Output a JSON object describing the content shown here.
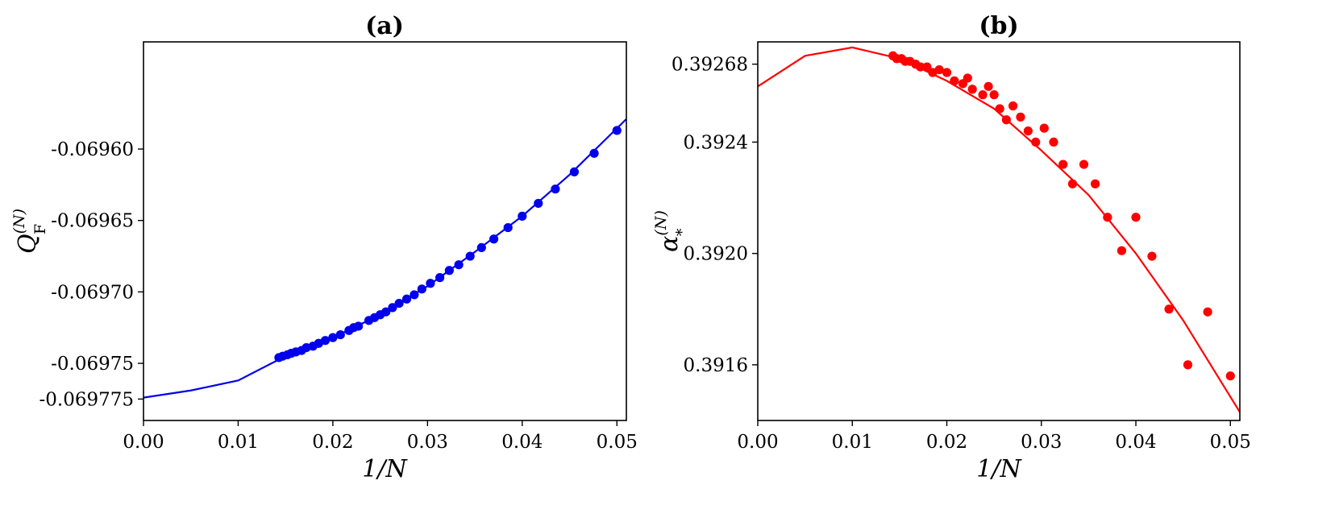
{
  "chart_data": [
    {
      "type": "scatter",
      "panel": "(a)",
      "title": "(a)",
      "xlabel": "1/N",
      "ylabel": "Q_F^(N)",
      "ylabel_main": "Q",
      "ylabel_sub": "F",
      "ylabel_sup": "(N)",
      "xlim": [
        0,
        0.051
      ],
      "ylim": [
        -0.06979,
        -0.069525
      ],
      "xticks": [
        0,
        0.01,
        0.02,
        0.03,
        0.04,
        0.05
      ],
      "xtick_labels": [
        "0.00",
        "0.01",
        "0.02",
        "0.03",
        "0.04",
        "0.05"
      ],
      "yticks": [
        -0.069775,
        -0.06975,
        -0.0697,
        -0.06965,
        -0.0696
      ],
      "ytick_labels": [
        "-0.069775",
        "-0.06975",
        "-0.06970",
        "-0.06965",
        "-0.06960"
      ],
      "grid": false,
      "color": "#0000ee",
      "series": [
        {
          "kind": "points",
          "x": [
            0.0143,
            0.0147,
            0.0152,
            0.0156,
            0.0161,
            0.0167,
            0.0172,
            0.0179,
            0.0185,
            0.0192,
            0.02,
            0.0208,
            0.0217,
            0.0222,
            0.0227,
            0.0238,
            0.0244,
            0.025,
            0.0256,
            0.0263,
            0.027,
            0.0278,
            0.0286,
            0.0294,
            0.0303,
            0.0313,
            0.0323,
            0.0333,
            0.0345,
            0.0357,
            0.037,
            0.0385,
            0.04,
            0.0417,
            0.0435,
            0.0455,
            0.0476,
            0.05
          ],
          "y": [
            -0.069746,
            -0.069745,
            -0.069744,
            -0.069743,
            -0.069742,
            -0.069741,
            -0.069739,
            -0.069738,
            -0.069736,
            -0.069734,
            -0.069732,
            -0.06973,
            -0.069727,
            -0.069725,
            -0.069724,
            -0.06972,
            -0.069718,
            -0.069716,
            -0.069714,
            -0.069711,
            -0.069708,
            -0.069705,
            -0.069702,
            -0.069698,
            -0.069694,
            -0.06969,
            -0.069685,
            -0.069681,
            -0.069675,
            -0.069669,
            -0.069663,
            -0.069655,
            -0.069647,
            -0.069638,
            -0.069628,
            -0.069616,
            -0.069603,
            -0.069587
          ]
        },
        {
          "kind": "fit",
          "x": [
            0,
            0.005,
            0.01,
            0.015,
            0.02,
            0.025,
            0.03,
            0.035,
            0.04,
            0.045,
            0.051
          ],
          "y": [
            -0.069774,
            -0.069769,
            -0.069762,
            -0.069745,
            -0.069732,
            -0.069716,
            -0.069696,
            -0.069672,
            -0.069647,
            -0.069618,
            -0.069579
          ]
        }
      ]
    },
    {
      "type": "scatter",
      "panel": "(b)",
      "title": "(b)",
      "xlabel": "1/N",
      "ylabel": "alpha_*^(N)",
      "ylabel_main": "α",
      "ylabel_sub": "*",
      "ylabel_sup": "(N)",
      "xlim": [
        0,
        0.051
      ],
      "ylim": [
        0.3914,
        0.39276
      ],
      "xticks": [
        0,
        0.01,
        0.02,
        0.03,
        0.04,
        0.05
      ],
      "xtick_labels": [
        "0.00",
        "0.01",
        "0.02",
        "0.03",
        "0.04",
        "0.05"
      ],
      "yticks": [
        0.3916,
        0.392,
        0.3924,
        0.39268
      ],
      "ytick_labels": [
        "0.3916",
        "0.3920",
        "0.3924",
        "0.39268"
      ],
      "grid": false,
      "color": "#ff0000",
      "series": [
        {
          "kind": "points",
          "x": [
            0.0143,
            0.0147,
            0.0152,
            0.0156,
            0.0161,
            0.0167,
            0.0172,
            0.0179,
            0.0185,
            0.0192,
            0.02,
            0.0208,
            0.0217,
            0.0222,
            0.0227,
            0.0238,
            0.0244,
            0.025,
            0.0256,
            0.0263,
            0.027,
            0.0278,
            0.0286,
            0.0294,
            0.0303,
            0.0313,
            0.0323,
            0.0333,
            0.0345,
            0.0357,
            0.037,
            0.0385,
            0.04,
            0.0417,
            0.0435,
            0.0455,
            0.0476,
            0.05
          ],
          "y": [
            0.39271,
            0.3927,
            0.3927,
            0.39269,
            0.39269,
            0.39268,
            0.39267,
            0.39267,
            0.39265,
            0.39266,
            0.39265,
            0.39262,
            0.39261,
            0.39263,
            0.39259,
            0.39257,
            0.3926,
            0.39257,
            0.39252,
            0.39248,
            0.39253,
            0.39249,
            0.39244,
            0.3924,
            0.39245,
            0.3924,
            0.39232,
            0.39225,
            0.39232,
            0.39225,
            0.39213,
            0.39201,
            0.39213,
            0.39199,
            0.3918,
            0.3916,
            0.39179,
            0.39156
          ]
        },
        {
          "kind": "fit",
          "x": [
            0,
            0.005,
            0.01,
            0.015,
            0.02,
            0.025,
            0.03,
            0.035,
            0.04,
            0.045,
            0.051
          ],
          "y": [
            0.3926,
            0.39271,
            0.39274,
            0.3927,
            0.39262,
            0.39252,
            0.39237,
            0.39221,
            0.392,
            0.39176,
            0.39143
          ]
        }
      ]
    }
  ]
}
